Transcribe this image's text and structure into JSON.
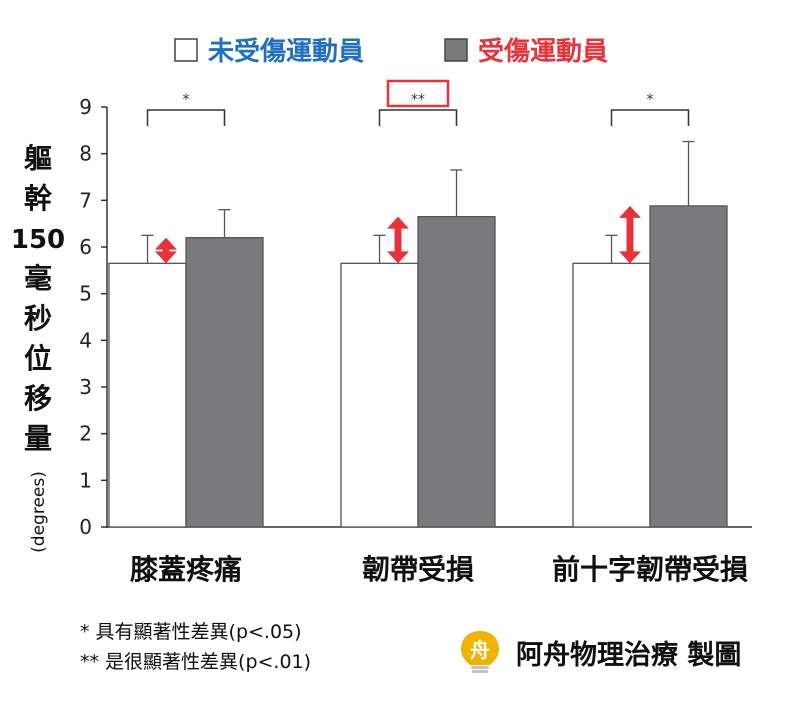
{
  "chart_data": {
    "type": "bar",
    "categories": [
      "膝蓋疼痛",
      "韌帶受損",
      "前十字韌帶受損"
    ],
    "series": [
      {
        "name": "未受傷運動員",
        "values": [
          5.65,
          5.65,
          5.65
        ],
        "errors": [
          0.6,
          0.6,
          0.6
        ],
        "color": "#ffffff",
        "label_color": "#1f6fc2"
      },
      {
        "name": "受傷運動員",
        "values": [
          6.2,
          6.65,
          6.88
        ],
        "errors": [
          0.6,
          1.0,
          1.38
        ],
        "color": "#7a7a7c",
        "label_color": "#e8333a"
      }
    ],
    "ylabel": "軀幹150毫秒位移量",
    "ylabel_lines": [
      "軀",
      "幹",
      "150",
      "毫",
      "秒",
      "位",
      "移",
      "量"
    ],
    "yunit": "(degrees)",
    "ylim": [
      0,
      9
    ],
    "yticks": [
      0,
      1,
      2,
      3,
      4,
      5,
      6,
      7,
      8,
      9
    ],
    "significance": [
      "*",
      "**",
      "*"
    ],
    "highlighted_significance_index": 1,
    "legend_position": "top-center",
    "accent_color": "#e8333a",
    "grid": false
  },
  "footnotes": [
    "* 具有顯著性差異(p<.05)",
    "** 是很顯著性差異(p<.01)"
  ],
  "credit": {
    "logo_char": "舟",
    "logo_color": "#f0b400",
    "text": "阿舟物理治療 製圖"
  }
}
